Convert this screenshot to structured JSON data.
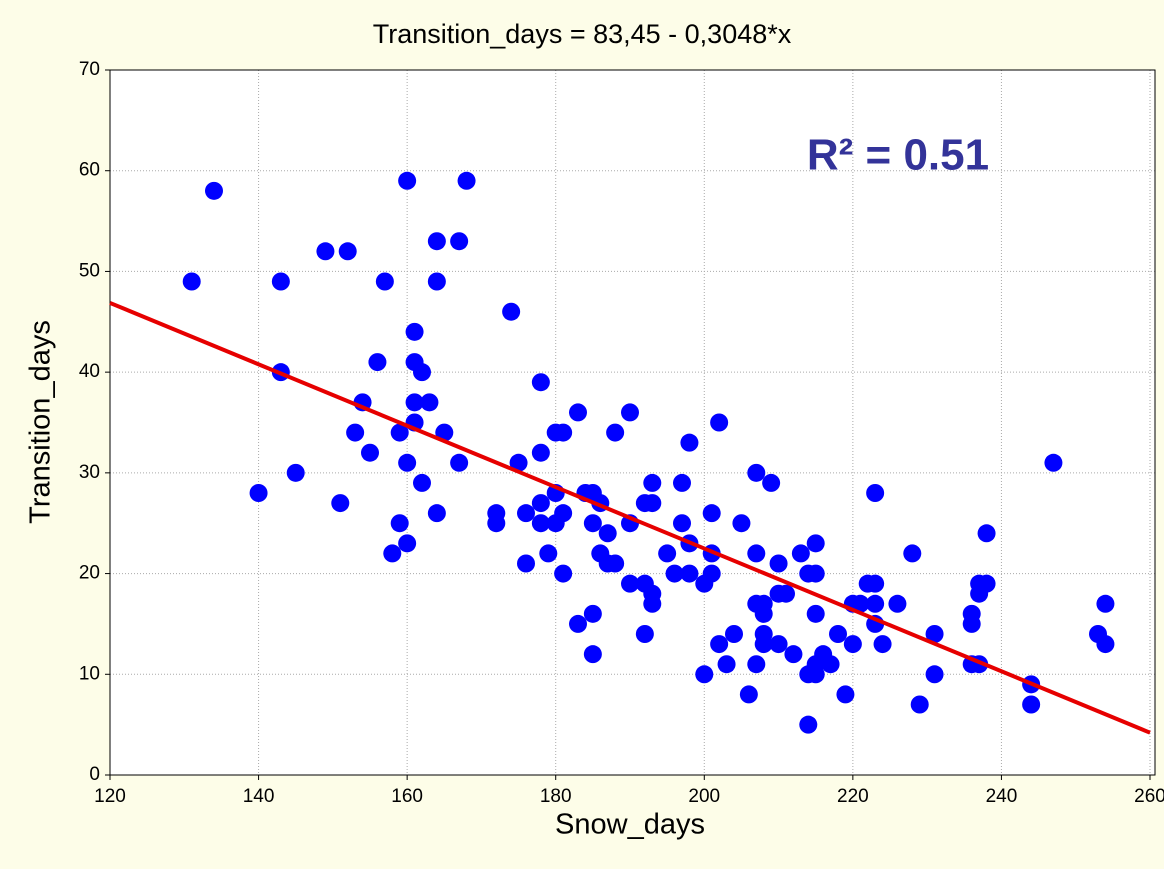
{
  "chart_data": {
    "type": "scatter",
    "title": "Transition_days  =  83,45 - 0,3048*x",
    "x_label": "Snow_days",
    "y_label": "Transition_days",
    "annotation": "R² = 0.51",
    "xlim": [
      120,
      260
    ],
    "ylim": [
      0,
      70
    ],
    "xticks": [
      120,
      140,
      160,
      180,
      200,
      220,
      240,
      260
    ],
    "yticks": [
      0,
      10,
      20,
      30,
      40,
      50,
      60,
      70
    ],
    "grid": true,
    "fit": {
      "intercept": 83.45,
      "slope": -0.3048,
      "color": "#e60000"
    },
    "series": [
      {
        "color": "#0000ff",
        "x": [
          131,
          134,
          140,
          143,
          143,
          145,
          149,
          151,
          152,
          153,
          154,
          155,
          156,
          157,
          158,
          159,
          159,
          160,
          160,
          160,
          161,
          161,
          161,
          161,
          162,
          162,
          163,
          164,
          164,
          164,
          165,
          167,
          167,
          168,
          172,
          172,
          174,
          175,
          176,
          176,
          178,
          178,
          178,
          178,
          179,
          180,
          180,
          180,
          181,
          181,
          181,
          183,
          183,
          184,
          185,
          185,
          185,
          185,
          186,
          186,
          187,
          187,
          188,
          188,
          190,
          190,
          190,
          192,
          192,
          192,
          193,
          193,
          193,
          193,
          195,
          196,
          197,
          197,
          198,
          198,
          198,
          200,
          200,
          201,
          201,
          201,
          202,
          202,
          203,
          204,
          205,
          206,
          207,
          207,
          207,
          207,
          208,
          208,
          208,
          208,
          209,
          210,
          210,
          210,
          211,
          212,
          213,
          214,
          214,
          214,
          215,
          215,
          215,
          215,
          215,
          216,
          217,
          218,
          219,
          220,
          220,
          221,
          222,
          223,
          223,
          223,
          223,
          224,
          226,
          228,
          229,
          231,
          231,
          236,
          236,
          236,
          237,
          237,
          237,
          238,
          238,
          244,
          244,
          247,
          253,
          254,
          254
        ],
        "values": [
          49,
          58,
          28,
          49,
          40,
          30,
          52,
          27,
          52,
          34,
          37,
          32,
          41,
          49,
          22,
          34,
          25,
          59,
          31,
          23,
          44,
          41,
          37,
          35,
          40,
          29,
          37,
          53,
          49,
          26,
          34,
          53,
          31,
          59,
          26,
          25,
          46,
          31,
          26,
          21,
          39,
          32,
          27,
          25,
          22,
          28,
          34,
          25,
          34,
          26,
          20,
          36,
          15,
          28,
          28,
          25,
          16,
          12,
          27,
          22,
          24,
          21,
          34,
          21,
          36,
          25,
          19,
          27,
          19,
          14,
          29,
          27,
          18,
          17,
          22,
          20,
          29,
          25,
          33,
          23,
          20,
          19,
          10,
          22,
          20,
          26,
          35,
          13,
          11,
          14,
          25,
          8,
          30,
          22,
          17,
          11,
          17,
          16,
          14,
          13,
          29,
          21,
          18,
          13,
          18,
          12,
          22,
          20,
          10,
          5,
          23,
          20,
          16,
          11,
          10,
          12,
          11,
          14,
          8,
          17,
          13,
          17,
          19,
          28,
          19,
          17,
          15,
          13,
          17,
          22,
          7,
          14,
          10,
          16,
          15,
          11,
          18,
          19,
          11,
          24,
          19,
          9,
          7,
          31,
          14,
          17,
          13
        ]
      }
    ]
  }
}
